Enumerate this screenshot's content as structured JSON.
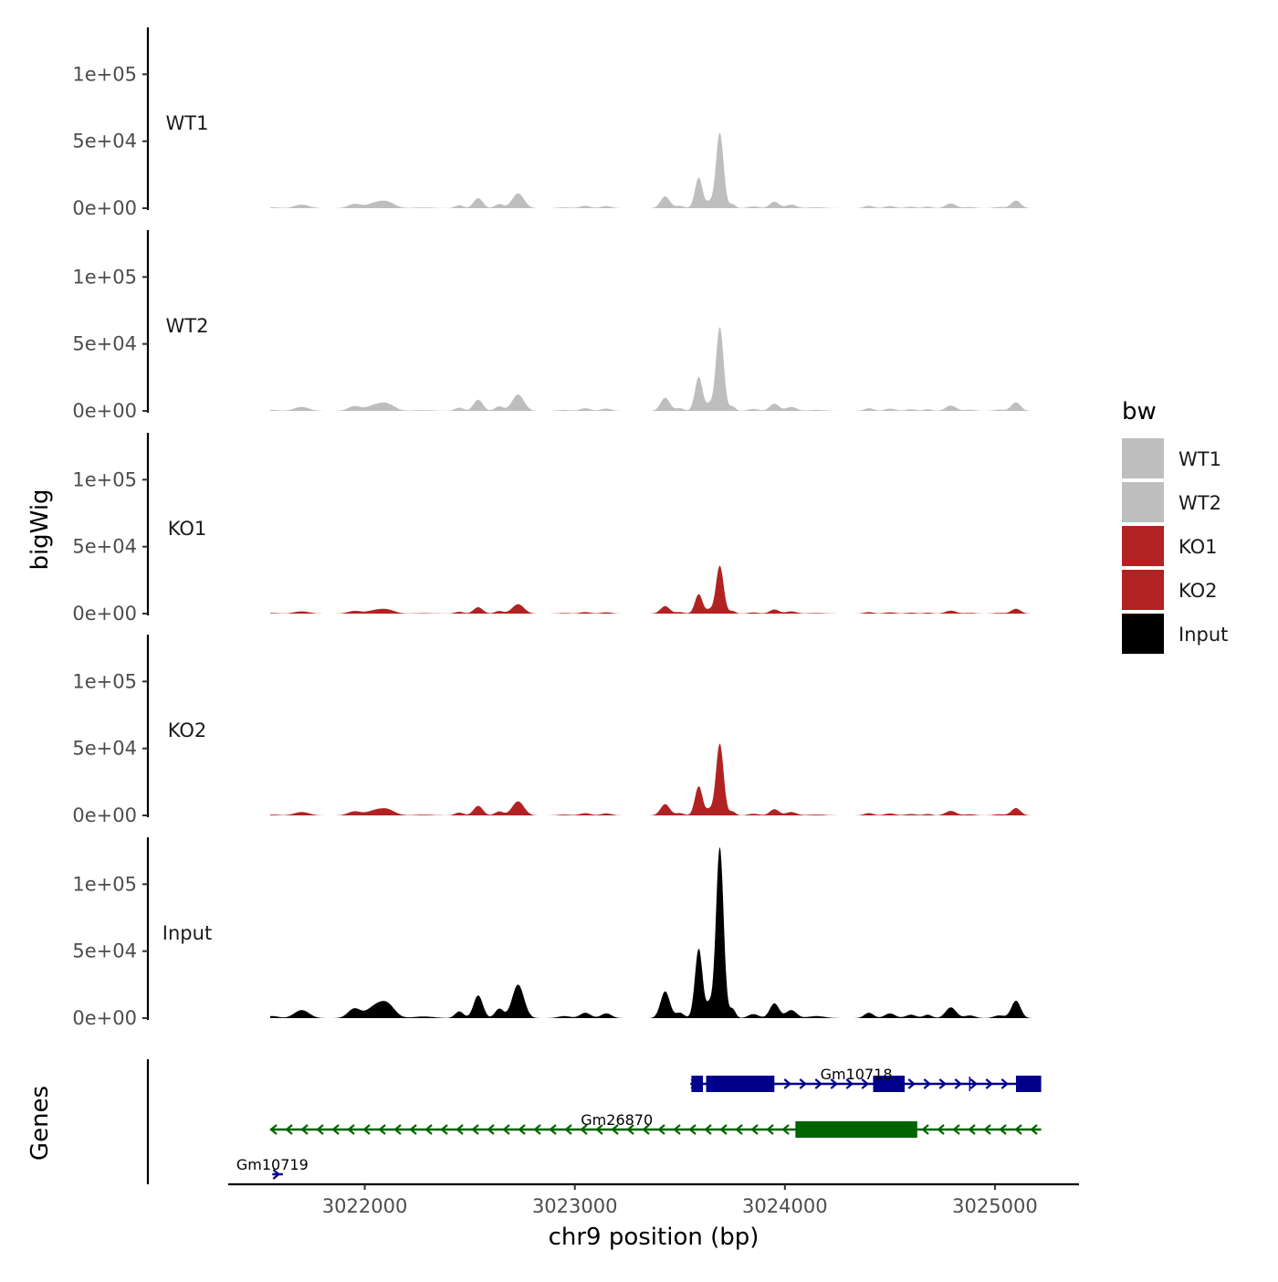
{
  "chart_data": {
    "type": "area",
    "y_axis_title": "bigWig",
    "x_axis_title": "chr9 position (bp)",
    "genes_axis_title": "Genes",
    "xlim": [
      3021350,
      3025400
    ],
    "data_xrange": [
      3021550,
      3025200
    ],
    "x_ticks": [
      3022000,
      3023000,
      3024000,
      3025000
    ],
    "x_tick_labels": [
      "3022000",
      "3023000",
      "3024000",
      "3025000"
    ],
    "ylim": [
      0,
      135000
    ],
    "y_ticks": [
      0,
      50000,
      100000
    ],
    "y_tick_labels": [
      "0e+00",
      "5e+04",
      "1e+05"
    ],
    "legend": {
      "title": "bw",
      "entries": [
        {
          "label": "WT1",
          "color": "#bebebe"
        },
        {
          "label": "WT2",
          "color": "#bebebe"
        },
        {
          "label": "KO1",
          "color": "#b22222"
        },
        {
          "label": "KO2",
          "color": "#b22222"
        },
        {
          "label": "Input",
          "color": "#000000"
        }
      ]
    },
    "series": [
      {
        "name": "WT1",
        "color": "#bebebe",
        "scale": 0.44
      },
      {
        "name": "WT2",
        "color": "#bebebe",
        "scale": 0.49
      },
      {
        "name": "KO1",
        "color": "#b22222",
        "scale": 0.28
      },
      {
        "name": "KO2",
        "color": "#b22222",
        "scale": 0.42
      },
      {
        "name": "Input",
        "color": "#000000",
        "scale": 1.0
      }
    ],
    "base_peaks": [
      {
        "x": 3021560,
        "height": 1500,
        "width": 30
      },
      {
        "x": 3021700,
        "height": 6000,
        "width": 35
      },
      {
        "x": 3021950,
        "height": 7000,
        "width": 30
      },
      {
        "x": 3022050,
        "height": 8500,
        "width": 40
      },
      {
        "x": 3022110,
        "height": 9000,
        "width": 35
      },
      {
        "x": 3022280,
        "height": 1200,
        "width": 50
      },
      {
        "x": 3022450,
        "height": 5000,
        "width": 20
      },
      {
        "x": 3022540,
        "height": 17000,
        "width": 22
      },
      {
        "x": 3022640,
        "height": 7000,
        "width": 20
      },
      {
        "x": 3022730,
        "height": 25000,
        "width": 28
      },
      {
        "x": 3022950,
        "height": 1500,
        "width": 30
      },
      {
        "x": 3023050,
        "height": 4000,
        "width": 25
      },
      {
        "x": 3023150,
        "height": 3500,
        "width": 25
      },
      {
        "x": 3023430,
        "height": 20000,
        "width": 22
      },
      {
        "x": 3023500,
        "height": 4000,
        "width": 20
      },
      {
        "x": 3023590,
        "height": 52000,
        "width": 18
      },
      {
        "x": 3023640,
        "height": 10000,
        "width": 14
      },
      {
        "x": 3023690,
        "height": 128000,
        "width": 18
      },
      {
        "x": 3023750,
        "height": 7000,
        "width": 15
      },
      {
        "x": 3023850,
        "height": 3000,
        "width": 25
      },
      {
        "x": 3023950,
        "height": 11000,
        "width": 22
      },
      {
        "x": 3024030,
        "height": 6000,
        "width": 25
      },
      {
        "x": 3024150,
        "height": 1500,
        "width": 40
      },
      {
        "x": 3024400,
        "height": 4000,
        "width": 22
      },
      {
        "x": 3024500,
        "height": 3500,
        "width": 25
      },
      {
        "x": 3024600,
        "height": 2500,
        "width": 25
      },
      {
        "x": 3024680,
        "height": 2500,
        "width": 20
      },
      {
        "x": 3024790,
        "height": 8000,
        "width": 25
      },
      {
        "x": 3024880,
        "height": 2000,
        "width": 25
      },
      {
        "x": 3025020,
        "height": 2000,
        "width": 25
      },
      {
        "x": 3025100,
        "height": 13000,
        "width": 22
      }
    ],
    "genes": [
      {
        "name": "Gm10718",
        "strand": "+",
        "color": "#00008b",
        "start": 3023550,
        "end": 3025220,
        "label_x": 3024340,
        "row": 0,
        "exons": [
          [
            3023555,
            3023610
          ],
          [
            3023625,
            3023950
          ],
          [
            3024420,
            3024570
          ],
          [
            3025100,
            3025220
          ]
        ],
        "introns_marks": [
          3024880
        ]
      },
      {
        "name": "Gm26870",
        "strand": "-",
        "color": "#006400",
        "start": 3021550,
        "end": 3025220,
        "label_x": 3023200,
        "row": 1,
        "exons": [
          [
            3024050,
            3024630
          ]
        ]
      },
      {
        "name": "Gm10719",
        "strand": "+",
        "color": "#00008b",
        "start": 3021560,
        "end": 3021610,
        "label_x": 3021560,
        "row": 2,
        "exons": []
      }
    ]
  }
}
